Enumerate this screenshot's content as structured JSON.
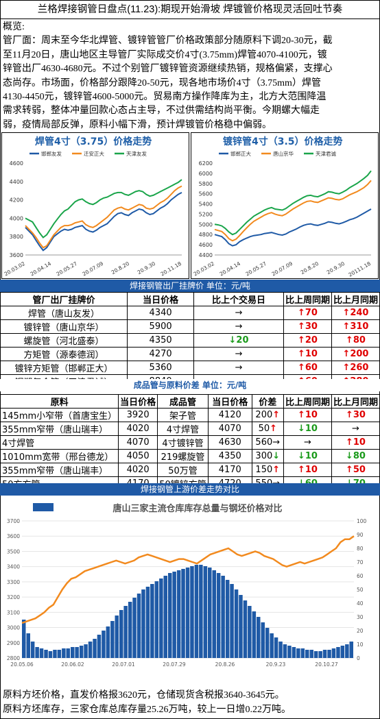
{
  "title": "兰格焊接钢管日盘点(11.23):期现开始滑坡 焊镀管价格现灵活回吐节奏",
  "summary": {
    "heading": "概览:",
    "lines": [
      "管厂面：周末至今华北焊管、镀锌管管厂价格政策部分随原料下调20-30元，截",
      "至11月20日，唐山地区主导管厂实际成交价4寸(3.75mm)焊管4070-4100元，镀",
      "锌管出厂4630-4680元。不过个别管厂镀锌管资源继续热销，规格偏紧，支撑心",
      "态尚存。市场面，价格部分跟降20-50元，现各地市场价4寸（3.75mm）焊管",
      "4130-4450元，镀锌管4600-5000元。贸易南方操作降库为主，北方大范围降温",
      "需求转弱，整体冲量回款心态占主导，不过供需结构尚平衡。今期螺大幅走",
      "弱，疫情局部反弹，原料小幅下滑，预计焊镀管价格稳中偏弱。"
    ]
  },
  "table1": {
    "section_title": "焊接钢管出厂挂牌价     单位：元/吨",
    "headers": [
      "管厂出厂挂牌价",
      "当日价格",
      "比上个交易日",
      "比上周同期",
      "比上月同期"
    ],
    "rows": [
      {
        "name": "焊管（唐山友发）",
        "price": "4340",
        "d1": "→",
        "d1c": "flat",
        "w": "↑70",
        "wc": "up",
        "m": "↑240",
        "mc": "up"
      },
      {
        "name": "镀锌管（唐山京华）",
        "price": "5900",
        "d1": "→",
        "d1c": "flat",
        "w": "↑30",
        "wc": "up",
        "m": "↑310",
        "mc": "up"
      },
      {
        "name": "螺旋管（河北盛泰）",
        "price": "4350",
        "d1": "↓20",
        "d1c": "down",
        "w": "↑20",
        "wc": "up",
        "m": "↑80",
        "mc": "up"
      },
      {
        "name": "方矩管（源泰德润）",
        "price": "4270",
        "d1": "→",
        "d1c": "flat",
        "w": "↑10",
        "wc": "up",
        "m": "↑200",
        "mc": "up"
      },
      {
        "name": "镀锌方矩管（邯郸正大）",
        "price": "5360",
        "d1": "→",
        "d1c": "flat",
        "w": "↑60",
        "wc": "up",
        "m": "↑260",
        "mc": "up"
      },
      {
        "name": "钢塑复合管（天津君诚）",
        "price": "8840",
        "d1": "→",
        "d1c": "flat",
        "w": "↑60",
        "wc": "up",
        "m": "↑280",
        "mc": "up"
      }
    ]
  },
  "table2": {
    "section_title": "成品管与原料价差     单位：元/吨",
    "headers": [
      "原料",
      "当日价格",
      "成品管",
      "当日价格",
      "价差",
      "比上周同期",
      "比上月同期"
    ],
    "rows": [
      {
        "raw": "145mm小窄带（首唐宝生）",
        "rp": "3920",
        "prod": "架子管",
        "pp": "4120",
        "diff": "200",
        "da": "↑",
        "dac": "up",
        "w": "↑10",
        "wc": "up",
        "m": "↑30",
        "mc": "up"
      },
      {
        "raw": "355mm窄带（唐山瑞丰）",
        "rp": "4020",
        "prod": "4寸焊管",
        "pp": "4070",
        "diff": "50",
        "da": "↑",
        "dac": "up",
        "w": "↓10",
        "wc": "down",
        "m": "→",
        "mc": "flat"
      },
      {
        "raw": "4寸焊管",
        "rp": "4070",
        "prod": "4寸镀锌管",
        "pp": "4630",
        "diff": "560",
        "da": "→",
        "dac": "flat",
        "w": "→",
        "wc": "flat",
        "m": "↑10",
        "mc": "up"
      },
      {
        "raw": "1010mm宽带（邢台德龙）",
        "rp": "4050",
        "prod": "219螺旋管",
        "pp": "4350",
        "diff": "300",
        "da": "↓",
        "dac": "down",
        "w": "↓10",
        "wc": "down",
        "m": "↓80",
        "mc": "down"
      },
      {
        "raw": "355mm窄带（唐山瑞丰）",
        "rp": "4020",
        "prod": "50万管",
        "pp": "4170",
        "diff": "150",
        "da": "↑",
        "dac": "up",
        "w": "↑10",
        "wc": "up",
        "m": "↑50",
        "mc": "up"
      },
      {
        "raw": "50方方管",
        "rp": "4170",
        "prod": "50镀锌方管",
        "pp": "4720",
        "diff": "550",
        "da": "→",
        "dac": "flat",
        "w": "↓60",
        "wc": "down",
        "m": "↓70",
        "mc": "down"
      }
    ]
  },
  "section3_title": "焊接钢管上游价差走势对比",
  "footer": [
    "原料方坯价格，直发价格报3620元，仓储现货含税报3640-3645元。",
    "原料方坯库存，三家仓库总库存量25.26万吨，较上一日增0.22万吨。"
  ],
  "colors": {
    "blue": "#1f5aa6",
    "orange": "#f28a1e",
    "green": "#1aa54a",
    "up": "#e00000",
    "down": "#1a9a1a"
  },
  "chart_data": [
    {
      "type": "line",
      "title": "焊管4寸（3.75）价格走势",
      "x_ticks": [
        "20.03.02",
        "20.04.14",
        "20.05.27",
        "20.07.09",
        "20.8.20",
        "20.9.30",
        "20.11.18"
      ],
      "ylim": [
        3600,
        4600
      ],
      "y_ticks": [
        3600,
        3800,
        4000,
        4200,
        4400,
        4600
      ],
      "series": [
        {
          "name": "邯郸友发",
          "color": "#1f5aa6",
          "values": [
            3900,
            3860,
            3820,
            3760,
            3700,
            3650,
            3680,
            3740,
            3800,
            3830,
            3860,
            3880,
            3870,
            3880,
            3900,
            3910,
            3920,
            3880,
            3860,
            3850,
            3870,
            3900,
            3920,
            3940,
            3980,
            4020,
            4050,
            4060,
            4040,
            4030,
            4060,
            4080,
            4100,
            4090,
            4060,
            4040,
            4050,
            4080,
            4110,
            4130,
            4160,
            4200,
            4230,
            4260,
            4280
          ]
        },
        {
          "name": "迁安正大",
          "color": "#f28a1e",
          "values": [
            3920,
            3880,
            3840,
            3790,
            3730,
            3680,
            3700,
            3760,
            3820,
            3860,
            3900,
            3920,
            3920,
            3930,
            3950,
            3960,
            3970,
            3930,
            3910,
            3900,
            3920,
            3950,
            3980,
            4010,
            4050,
            4090,
            4110,
            4120,
            4100,
            4090,
            4110,
            4130,
            4150,
            4140,
            4110,
            4100,
            4110,
            4140,
            4170,
            4190,
            4220,
            4260,
            4300,
            4330,
            4350
          ]
        },
        {
          "name": "天津友发",
          "color": "#1aa54a",
          "values": [
            4000,
            3980,
            3960,
            3900,
            3840,
            3790,
            3820,
            3880,
            3940,
            3990,
            4040,
            4080,
            4100,
            4140,
            4180,
            4200,
            4210,
            4180,
            4160,
            4150,
            4170,
            4200,
            4220,
            4230,
            4250,
            4270,
            4280,
            4280,
            4260,
            4250,
            4270,
            4290,
            4300,
            4290,
            4260,
            4240,
            4250,
            4270,
            4290,
            4310,
            4330,
            4350,
            4370,
            4390,
            4420
          ]
        }
      ]
    },
    {
      "type": "line",
      "title": "镀锌管4寸（3.5）价格走势",
      "x_ticks": [
        "20.03.02",
        "20.04.14",
        "20.05.27",
        "20.07.09",
        "20.8.20",
        "20.9.30",
        "20111.18"
      ],
      "ylim": [
        4400,
        6200
      ],
      "y_ticks": [
        4400,
        4600,
        4800,
        5000,
        5200,
        5400,
        5600,
        5800,
        6000,
        6200
      ],
      "series": [
        {
          "name": "邯郸正大",
          "color": "#1f5aa6",
          "values": [
            4800,
            4780,
            4760,
            4700,
            4620,
            4580,
            4600,
            4660,
            4700,
            4730,
            4760,
            4780,
            4790,
            4800,
            4820,
            4830,
            4840,
            4820,
            4800,
            4790,
            4810,
            4850,
            4880,
            4910,
            4950,
            4980,
            5000,
            5010,
            4990,
            4980,
            5000,
            5020,
            5050,
            5040,
            5020,
            5010,
            5030,
            5060,
            5090,
            5110,
            5140,
            5180,
            5220,
            5260,
            5300
          ]
        },
        {
          "name": "唐山京华",
          "color": "#f28a1e",
          "values": [
            4900,
            4880,
            4860,
            4800,
            4720,
            4680,
            4710,
            4780,
            4860,
            4930,
            5000,
            5060,
            5100,
            5140,
            5180,
            5210,
            5230,
            5200,
            5180,
            5170,
            5200,
            5250,
            5300,
            5340,
            5380,
            5420,
            5450,
            5460,
            5440,
            5430,
            5460,
            5490,
            5520,
            5510,
            5490,
            5480,
            5500,
            5540,
            5580,
            5610,
            5640,
            5680,
            5720,
            5780,
            5860
          ]
        },
        {
          "name": "天津君诚",
          "color": "#1aa54a",
          "values": [
            5000,
            4990,
            4970,
            4920,
            4850,
            4800,
            4830,
            4900,
            4970,
            5040,
            5100,
            5160,
            5200,
            5240,
            5280,
            5310,
            5330,
            5300,
            5290,
            5280,
            5310,
            5360,
            5410,
            5450,
            5490,
            5530,
            5560,
            5570,
            5550,
            5540,
            5570,
            5600,
            5640,
            5630,
            5610,
            5600,
            5630,
            5670,
            5720,
            5760,
            5800,
            5850,
            5900,
            5960,
            6050
          ]
        }
      ]
    },
    {
      "type": "line",
      "title": "唐山三家主流仓库库存总量与钢坯价格对比",
      "x_ticks": [
        "20.05.06",
        "20.06.02",
        "20.07.01",
        "20.07.29",
        "20.8.26",
        "20.9.23",
        "20.10.27"
      ],
      "ylim": [
        2800,
        3700
      ],
      "y_ticks": [
        2800,
        2900,
        3000,
        3100,
        3200,
        3300,
        3400,
        3500,
        3600,
        3700
      ],
      "y2lim": [
        0,
        100
      ],
      "y2_ticks": [
        0,
        10,
        20,
        30,
        40,
        50,
        60,
        70,
        80,
        90,
        100
      ],
      "series": [
        {
          "name": "钢坯价格",
          "color": "#f28a1e",
          "axis": "left",
          "values": [
            3030,
            3040,
            3050,
            3060,
            3080,
            3100,
            3130,
            3150,
            3200,
            3250,
            3290,
            3320,
            3330,
            3350,
            3370,
            3380,
            3390,
            3400,
            3410,
            3420,
            3430,
            3440,
            3430,
            3420,
            3430,
            3440,
            3460,
            3470,
            3480,
            3470,
            3460,
            3450,
            3440,
            3430,
            3440,
            3450,
            3450,
            3440,
            3430,
            3420,
            3440,
            3460,
            3480,
            3490,
            3500,
            3510,
            3520,
            3500,
            3480,
            3470,
            3480,
            3490,
            3500,
            3490,
            3470,
            3460,
            3450,
            3430,
            3410,
            3400,
            3410,
            3420,
            3430,
            3420,
            3430,
            3440,
            3450,
            3460,
            3480,
            3500,
            3520,
            3560,
            3580,
            3580,
            3600
          ]
        },
        {
          "name": "库存总量",
          "color": "#1f5aa6",
          "axis": "right",
          "values": [
            28,
            18,
            12,
            8,
            7,
            6,
            5,
            6,
            6,
            7,
            7,
            8,
            8,
            9,
            10,
            12,
            14,
            17,
            20,
            23,
            27,
            31,
            35,
            38,
            41,
            44,
            47,
            50,
            52,
            54,
            56,
            58,
            60,
            62,
            63,
            64,
            65,
            66,
            67,
            68,
            68,
            67,
            66,
            64,
            62,
            60,
            57,
            54,
            50,
            46,
            42,
            38,
            34,
            30,
            26,
            22,
            18,
            15,
            12,
            10,
            9,
            8,
            7,
            7,
            6,
            6,
            5,
            5,
            6,
            6,
            7,
            8,
            9,
            10,
            12
          ]
        }
      ]
    }
  ]
}
